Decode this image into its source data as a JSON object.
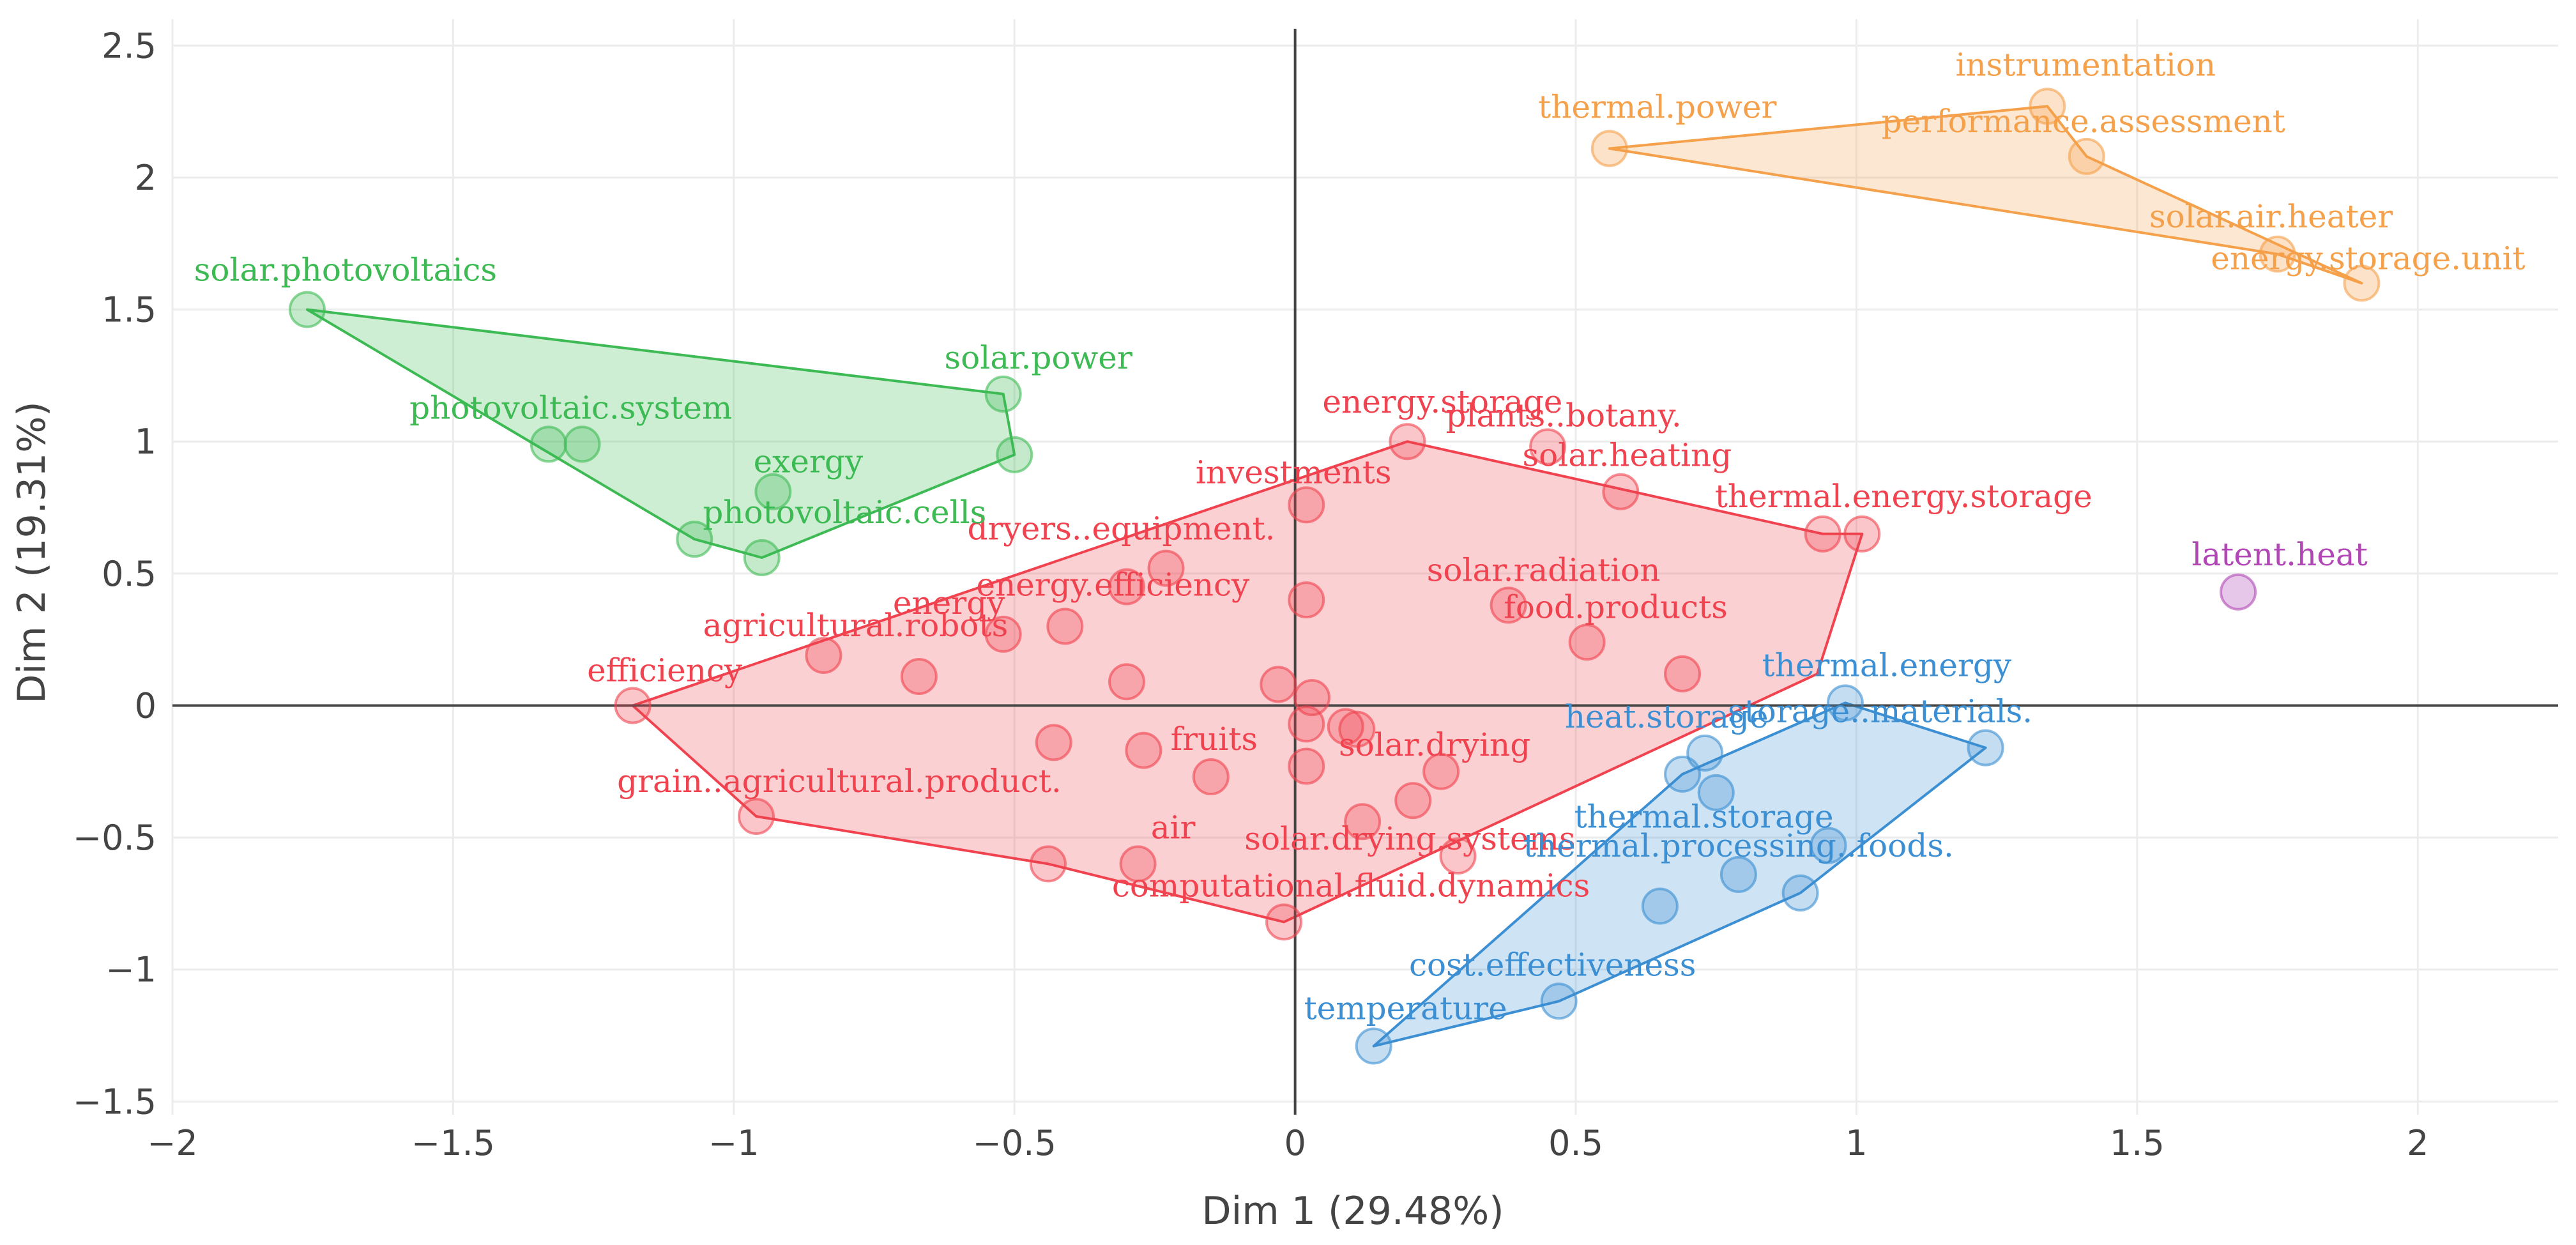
{
  "chart_data": {
    "type": "scatter",
    "title": "",
    "xlabel": "Dim 1 (29.48%)",
    "ylabel": "Dim 2 (19.31%)",
    "xlim": [
      -2.0,
      2.25
    ],
    "ylim": [
      -1.55,
      2.6
    ],
    "xticks": [
      -2,
      -1.5,
      -1,
      -0.5,
      0,
      0.5,
      1,
      1.5,
      2
    ],
    "xtick_labels": [
      "−2",
      "−1.5",
      "−1",
      "−0.5",
      "0",
      "0.5",
      "1",
      "1.5",
      "2"
    ],
    "yticks": [
      -1.5,
      -1,
      -0.5,
      0,
      0.5,
      1,
      1.5,
      2,
      2.5
    ],
    "ytick_labels": [
      "−1.5",
      "−1",
      "−0.5",
      "0",
      "0.5",
      "1",
      "1.5",
      "2",
      "2.5"
    ],
    "grid": true,
    "clusters": [
      {
        "name": "red",
        "color": "#f0434f",
        "hull": [
          [
            -1.18,
            0.0
          ],
          [
            -0.96,
            -0.42
          ],
          [
            -0.44,
            -0.6
          ],
          [
            -0.02,
            -0.82
          ],
          [
            0.93,
            0.12
          ],
          [
            1.01,
            0.65
          ],
          [
            0.94,
            0.65
          ],
          [
            0.2,
            1.0
          ]
        ],
        "points": [
          {
            "label": "energy.storage",
            "x": 0.2,
            "y": 1.0
          },
          {
            "label": "plants..botany.",
            "x": 0.45,
            "y": 0.98
          },
          {
            "label": "solar.heating",
            "x": 0.58,
            "y": 0.81
          },
          {
            "label": "thermal.energy.storage",
            "x": 1.01,
            "y": 0.65
          },
          {
            "label": "",
            "x": 0.94,
            "y": 0.65
          },
          {
            "label": "investments",
            "x": 0.02,
            "y": 0.76
          },
          {
            "label": "dryers..equipment.",
            "x": -0.23,
            "y": 0.52
          },
          {
            "label": "",
            "x": -0.3,
            "y": 0.45
          },
          {
            "label": "energy.efficiency",
            "x": -0.41,
            "y": 0.3
          },
          {
            "label": "",
            "x": 0.02,
            "y": 0.4
          },
          {
            "label": "solar.radiation",
            "x": 0.38,
            "y": 0.38
          },
          {
            "label": "food.products",
            "x": 0.52,
            "y": 0.24
          },
          {
            "label": "",
            "x": 0.69,
            "y": 0.12
          },
          {
            "label": "agricultural.robots",
            "x": -0.84,
            "y": 0.19
          },
          {
            "label": "energy",
            "x": -0.52,
            "y": 0.27
          },
          {
            "label": "",
            "x": -0.67,
            "y": 0.11
          },
          {
            "label": "",
            "x": -0.3,
            "y": 0.09
          },
          {
            "label": "efficiency",
            "x": -1.18,
            "y": 0.0
          },
          {
            "label": "",
            "x": -0.03,
            "y": 0.08
          },
          {
            "label": "",
            "x": 0.03,
            "y": 0.03
          },
          {
            "label": "",
            "x": 0.02,
            "y": -0.07
          },
          {
            "label": "",
            "x": 0.09,
            "y": -0.08
          },
          {
            "label": "",
            "x": 0.11,
            "y": -0.09
          },
          {
            "label": "",
            "x": -0.43,
            "y": -0.14
          },
          {
            "label": "",
            "x": -0.27,
            "y": -0.17
          },
          {
            "label": "fruits",
            "x": -0.15,
            "y": -0.27
          },
          {
            "label": "",
            "x": 0.02,
            "y": -0.23
          },
          {
            "label": "solar.drying",
            "x": 0.26,
            "y": -0.25
          },
          {
            "label": "",
            "x": 0.21,
            "y": -0.36
          },
          {
            "label": "",
            "x": 0.12,
            "y": -0.44
          },
          {
            "label": "solar.drying.systems",
            "x": 0.29,
            "y": -0.57
          },
          {
            "label": "grain..agricultural.product.",
            "x": -0.96,
            "y": -0.42
          },
          {
            "label": "air",
            "x": -0.28,
            "y": -0.6
          },
          {
            "label": "",
            "x": -0.44,
            "y": -0.6
          },
          {
            "label": "computational.fluid.dynamics",
            "x": -0.02,
            "y": -0.82
          }
        ]
      },
      {
        "name": "green",
        "color": "#3dba53",
        "hull": [
          [
            -1.76,
            1.5
          ],
          [
            -1.07,
            0.63
          ],
          [
            -0.95,
            0.56
          ],
          [
            -0.5,
            0.95
          ],
          [
            -0.52,
            1.18
          ]
        ],
        "points": [
          {
            "label": "solar.photovoltaics",
            "x": -1.76,
            "y": 1.5
          },
          {
            "label": "solar.power",
            "x": -0.52,
            "y": 1.18
          },
          {
            "label": "",
            "x": -0.5,
            "y": 0.95
          },
          {
            "label": "photovoltaic.system",
            "x": -1.33,
            "y": 0.99
          },
          {
            "label": "",
            "x": -1.27,
            "y": 0.99
          },
          {
            "label": "exergy",
            "x": -0.93,
            "y": 0.81
          },
          {
            "label": "photovoltaic.cells",
            "x": -1.07,
            "y": 0.63
          },
          {
            "label": "",
            "x": -0.95,
            "y": 0.56
          }
        ]
      },
      {
        "name": "orange",
        "color": "#f5a04a",
        "hull": [
          [
            0.56,
            2.11
          ],
          [
            1.34,
            2.27
          ],
          [
            1.41,
            2.08
          ],
          [
            1.9,
            1.6
          ],
          [
            1.75,
            1.71
          ]
        ],
        "points": [
          {
            "label": "instrumentation",
            "x": 1.34,
            "y": 2.27
          },
          {
            "label": "thermal.power",
            "x": 0.56,
            "y": 2.11
          },
          {
            "label": "performance.assessment",
            "x": 1.41,
            "y": 2.08
          },
          {
            "label": "solar.air.heater",
            "x": 1.75,
            "y": 1.71
          },
          {
            "label": "energy.storage.unit",
            "x": 1.9,
            "y": 1.6
          }
        ]
      },
      {
        "name": "blue",
        "color": "#3b8fd2",
        "hull": [
          [
            0.14,
            -1.29
          ],
          [
            0.47,
            -1.12
          ],
          [
            0.9,
            -0.71
          ],
          [
            1.23,
            -0.16
          ],
          [
            0.98,
            0.01
          ],
          [
            0.69,
            -0.26
          ]
        ],
        "points": [
          {
            "label": "thermal.energy",
            "x": 0.98,
            "y": 0.01
          },
          {
            "label": "heat.storage",
            "x": 0.73,
            "y": -0.18
          },
          {
            "label": "storage..materials.",
            "x": 1.23,
            "y": -0.16
          },
          {
            "label": "",
            "x": 0.69,
            "y": -0.26
          },
          {
            "label": "",
            "x": 0.75,
            "y": -0.33
          },
          {
            "label": "thermal.storage",
            "x": 0.95,
            "y": -0.53
          },
          {
            "label": "thermal.processing..foods.",
            "x": 0.79,
            "y": -0.64
          },
          {
            "label": "",
            "x": 0.9,
            "y": -0.71
          },
          {
            "label": "",
            "x": 0.65,
            "y": -0.76
          },
          {
            "label": "cost.effectiveness",
            "x": 0.47,
            "y": -1.12
          },
          {
            "label": "temperature",
            "x": 0.14,
            "y": -1.29
          }
        ]
      },
      {
        "name": "purple",
        "color": "#b147b5",
        "hull": [],
        "points": [
          {
            "label": "latent.heat",
            "x": 1.68,
            "y": 0.43
          }
        ]
      }
    ]
  }
}
